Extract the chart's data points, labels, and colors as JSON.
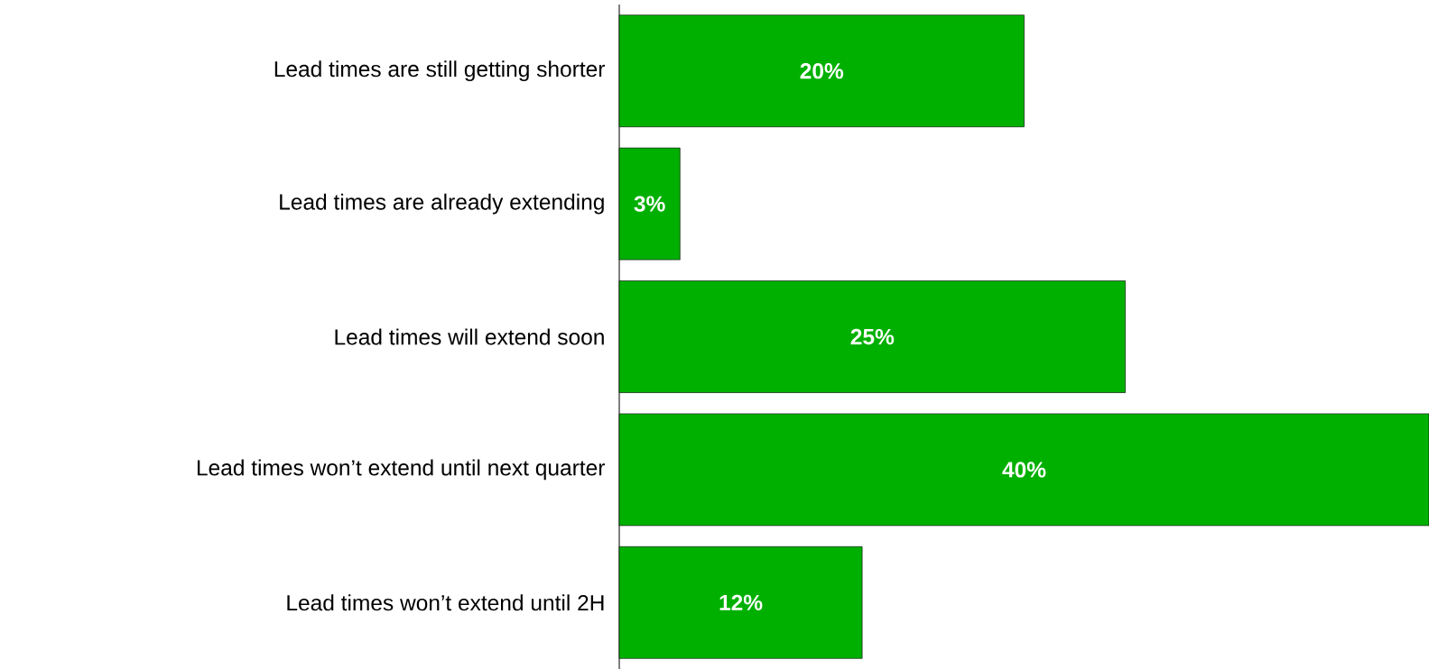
{
  "chart_data": {
    "type": "bar",
    "orientation": "horizontal",
    "categories": [
      "Lead times are still getting shorter",
      "Lead times are already extending",
      "Lead times will extend soon",
      "Lead times won’t extend until next quarter",
      "Lead times won’t extend until 2H"
    ],
    "values": [
      20,
      3,
      25,
      40,
      12
    ],
    "value_labels": [
      "20%",
      "3%",
      "25%",
      "40%",
      "12%"
    ],
    "color": "#00b000",
    "xlim": [
      0,
      40
    ],
    "tick_labels": "y"
  }
}
